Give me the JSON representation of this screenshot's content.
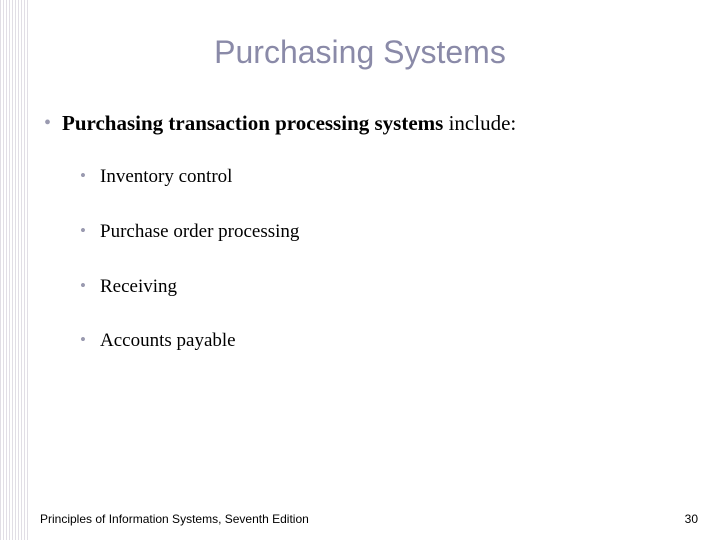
{
  "title": "Purchasing Systems",
  "title_color": "#8a8aa8",
  "title_fontsize": 32,
  "bullet": {
    "lead_bold": "Purchasing transaction processing systems",
    "lead_rest": " include:",
    "items": [
      "Inventory control",
      "Purchase order processing",
      "Receiving",
      "Accounts payable"
    ]
  },
  "footer": {
    "left": "Principles of Information Systems, Seventh Edition",
    "page": "30"
  },
  "colors": {
    "bullet_marker": "#9a9ab0",
    "text": "#000000",
    "background": "#ffffff",
    "border_stripe": "#c8c4d0"
  }
}
